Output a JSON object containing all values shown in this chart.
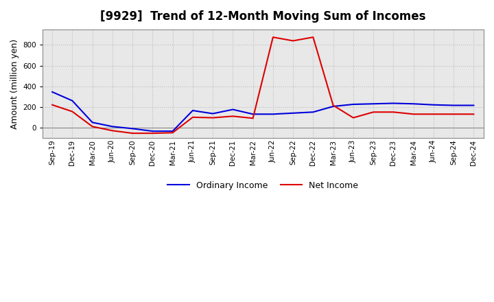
{
  "title": "[9929]  Trend of 12-Month Moving Sum of Incomes",
  "ylabel": "Amount (million yen)",
  "x_labels": [
    "Sep-19",
    "Dec-19",
    "Mar-20",
    "Jun-20",
    "Sep-20",
    "Dec-20",
    "Mar-21",
    "Jun-21",
    "Sep-21",
    "Dec-21",
    "Mar-22",
    "Jun-22",
    "Sep-22",
    "Dec-22",
    "Mar-23",
    "Jun-23",
    "Sep-23",
    "Dec-23",
    "Mar-24",
    "Jun-24",
    "Sep-24",
    "Dec-24"
  ],
  "ordinary_income": [
    345,
    260,
    50,
    10,
    -10,
    -35,
    -35,
    165,
    135,
    175,
    130,
    130,
    140,
    150,
    205,
    225,
    230,
    235,
    230,
    220,
    215,
    215
  ],
  "net_income": [
    220,
    155,
    10,
    -30,
    -55,
    -55,
    -50,
    100,
    95,
    110,
    90,
    875,
    840,
    875,
    215,
    95,
    150,
    150,
    130,
    130,
    130,
    130
  ],
  "ylim": [
    -100,
    950
  ],
  "yticks": [
    0,
    200,
    400,
    600,
    800
  ],
  "ordinary_color": "#0000dd",
  "net_color": "#dd0000",
  "background_color": "#ffffff",
  "plot_bg_color": "#e8e8e8",
  "grid_color": "#bbbbbb",
  "line_width": 1.5,
  "title_fontsize": 12,
  "legend_fontsize": 9,
  "ylabel_fontsize": 9,
  "tick_fontsize": 7.5
}
